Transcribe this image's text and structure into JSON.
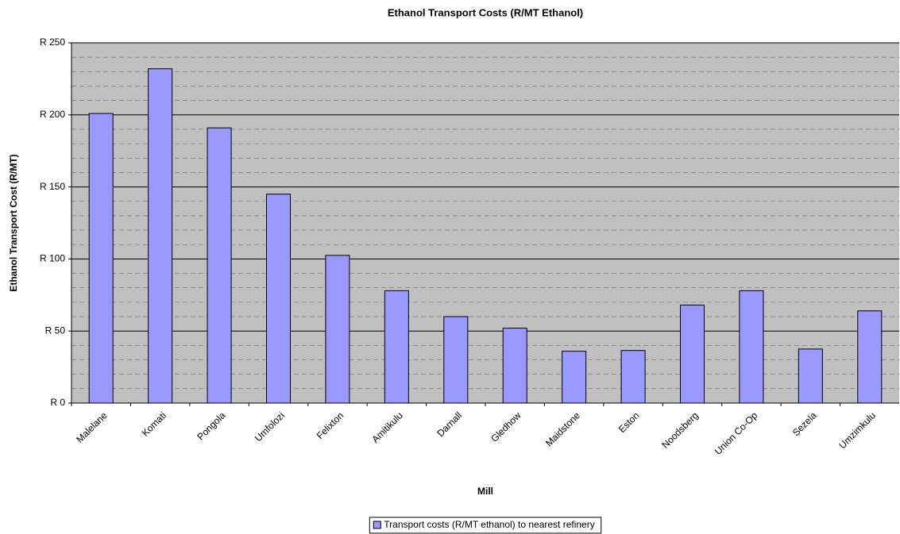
{
  "chart_data": {
    "type": "bar",
    "title": "Ethanol Transport Costs (R/MT Ethanol)",
    "x_label": "Mill",
    "y_label": "Ethanol Transport Cost (R/MT)",
    "categories": [
      "Malelane",
      "Komati",
      "Pongola",
      "Umfolozi",
      "Felixton",
      "Amitikulu",
      "Darnall",
      "Gledhow",
      "Maidstone",
      "Eston",
      "Noodsberg",
      "Union Co-Op",
      "Sezela",
      "Umzimkulu"
    ],
    "series": [
      {
        "name": "Transport costs (R/MT ethanol) to nearest refinery",
        "color": "#9999ff",
        "values": [
          201,
          232,
          191,
          145,
          102.5,
          78,
          60,
          52,
          36,
          36.5,
          68,
          78,
          37.5,
          64
        ]
      }
    ],
    "ylim": [
      0,
      250
    ],
    "yticks": [
      {
        "value": 0,
        "label": "R 0"
      },
      {
        "value": 50,
        "label": "R 50"
      },
      {
        "value": 100,
        "label": "R 100"
      },
      {
        "value": 150,
        "label": "R 150"
      },
      {
        "value": 200,
        "label": "R 200"
      },
      {
        "value": 250,
        "label": "R 250"
      }
    ],
    "minor_yticks": [
      10,
      20,
      30,
      40,
      60,
      70,
      80,
      90,
      110,
      120,
      130,
      140,
      160,
      170,
      180,
      190,
      210,
      220,
      230,
      240
    ],
    "grid": true,
    "plot_background": "#c0c0c0",
    "legend": "bottom"
  }
}
